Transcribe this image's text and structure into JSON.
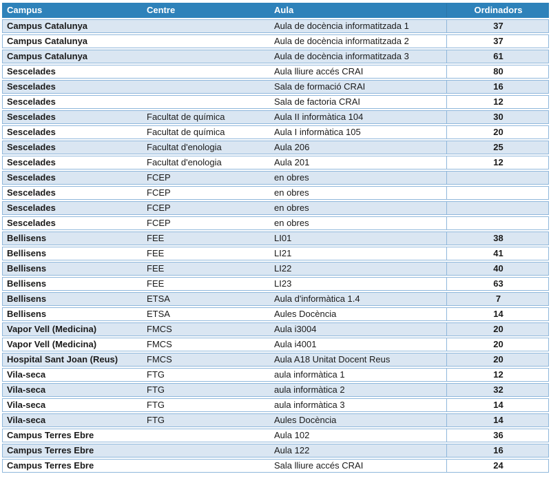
{
  "colors": {
    "header_bg": "#2e82ba",
    "header_text": "#ffffff",
    "band_bg": "#dae6f2",
    "row_border": "#8fb7db",
    "text": "#1a1a1a"
  },
  "table": {
    "columns": {
      "campus": "Campus",
      "centre": "Centre",
      "aula": "Aula",
      "ordinadors": "Ordinadors"
    },
    "rows": [
      {
        "campus": "Campus Catalunya",
        "centre": "",
        "aula": "Aula de docència informatitzada 1",
        "ordinadors": "37"
      },
      {
        "campus": "Campus Catalunya",
        "centre": "",
        "aula": "Aula de docència informatitzada 2",
        "ordinadors": "37"
      },
      {
        "campus": "Campus Catalunya",
        "centre": "",
        "aula": "Aula de docència informatitzada 3",
        "ordinadors": "61"
      },
      {
        "campus": "Sescelades",
        "centre": "",
        "aula": "Aula lliure accés CRAI",
        "ordinadors": "80"
      },
      {
        "campus": "Sescelades",
        "centre": "",
        "aula": "Sala de formació CRAI",
        "ordinadors": "16"
      },
      {
        "campus": "Sescelades",
        "centre": "",
        "aula": "Sala de factoria CRAI",
        "ordinadors": "12"
      },
      {
        "campus": "Sescelades",
        "centre": "Facultat de química",
        "aula": "Aula II informàtica 104",
        "ordinadors": "30"
      },
      {
        "campus": "Sescelades",
        "centre": "Facultat de química",
        "aula": "Aula I informàtica 105",
        "ordinadors": "20"
      },
      {
        "campus": "Sescelades",
        "centre": "Facultat d'enologia",
        "aula": "Aula 206",
        "ordinadors": "25"
      },
      {
        "campus": "Sescelades",
        "centre": "Facultat d'enologia",
        "aula": "Aula 201",
        "ordinadors": "12"
      },
      {
        "campus": "Sescelades",
        "centre": "FCEP",
        "aula": "en obres",
        "ordinadors": ""
      },
      {
        "campus": "Sescelades",
        "centre": "FCEP",
        "aula": "en obres",
        "ordinadors": ""
      },
      {
        "campus": "Sescelades",
        "centre": "FCEP",
        "aula": "en obres",
        "ordinadors": ""
      },
      {
        "campus": "Sescelades",
        "centre": "FCEP",
        "aula": "en obres",
        "ordinadors": ""
      },
      {
        "campus": "Bellisens",
        "centre": "FEE",
        "aula": "LI01",
        "ordinadors": "38"
      },
      {
        "campus": "Bellisens",
        "centre": "FEE",
        "aula": "LI21",
        "ordinadors": "41"
      },
      {
        "campus": "Bellisens",
        "centre": "FEE",
        "aula": "LI22",
        "ordinadors": "40"
      },
      {
        "campus": "Bellisens",
        "centre": "FEE",
        "aula": "LI23",
        "ordinadors": "63"
      },
      {
        "campus": "Bellisens",
        "centre": "ETSA",
        "aula": "Aula d'informàtica 1.4",
        "ordinadors": "7"
      },
      {
        "campus": "Bellisens",
        "centre": "ETSA",
        "aula": "Aules Docència",
        "ordinadors": "14"
      },
      {
        "campus": "Vapor Vell (Medicina)",
        "centre": "FMCS",
        "aula": "Aula i3004",
        "ordinadors": "20"
      },
      {
        "campus": "Vapor Vell (Medicina)",
        "centre": "FMCS",
        "aula": "Aula i4001",
        "ordinadors": "20"
      },
      {
        "campus": "Hospital Sant Joan (Reus)",
        "centre": "FMCS",
        "aula": "Aula A18 Unitat Docent Reus",
        "ordinadors": "20"
      },
      {
        "campus": "Vila-seca",
        "centre": "FTG",
        "aula": "aula informàtica 1",
        "ordinadors": "12"
      },
      {
        "campus": "Vila-seca",
        "centre": "FTG",
        "aula": "aula informàtica 2",
        "ordinadors": "32"
      },
      {
        "campus": "Vila-seca",
        "centre": "FTG",
        "aula": "aula informàtica 3",
        "ordinadors": "14"
      },
      {
        "campus": "Vila-seca",
        "centre": "FTG",
        "aula": "Aules Docència",
        "ordinadors": "14"
      },
      {
        "campus": "Campus Terres Ebre",
        "centre": "",
        "aula": "Aula 102",
        "ordinadors": "36"
      },
      {
        "campus": "Campus Terres Ebre",
        "centre": "",
        "aula": "Aula 122",
        "ordinadors": "16"
      },
      {
        "campus": "Campus Terres Ebre",
        "centre": "",
        "aula": "Sala lliure accés CRAI",
        "ordinadors": "24"
      }
    ]
  }
}
